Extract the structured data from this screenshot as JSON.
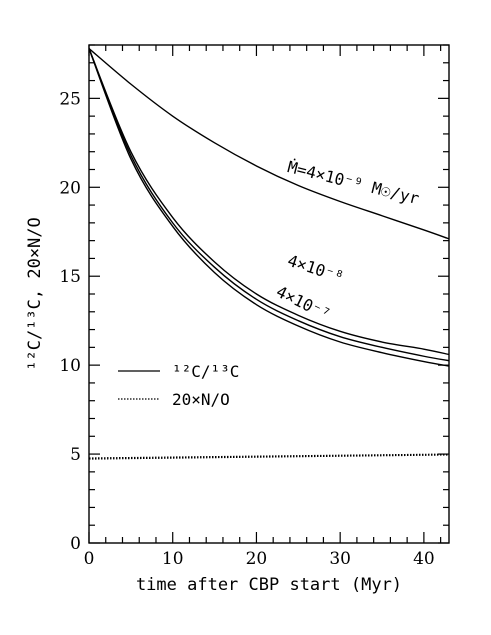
{
  "chart_data": {
    "type": "line",
    "xlabel": "time after CBP start (Myr)",
    "ylabel": "¹²C/¹³C, 20×N/O",
    "xlim": [
      0,
      43
    ],
    "ylim": [
      0,
      28
    ],
    "x_ticks": [
      0,
      10,
      20,
      30,
      40
    ],
    "y_ticks": [
      0,
      5,
      10,
      15,
      20,
      25
    ],
    "x_tick_labels": [
      "0",
      "10",
      "20",
      "30",
      "40"
    ],
    "y_tick_labels": [
      "0",
      "5",
      "10",
      "15",
      "20",
      "25"
    ],
    "grid": false,
    "legend_position": "middle-left",
    "legend": [
      {
        "label": "¹²C/¹³C",
        "style": "solid"
      },
      {
        "label": "20×N/O",
        "style": "dotted"
      }
    ],
    "series": [
      {
        "name": "Ṁ=4×10⁻⁹ M☉/yr",
        "quantity": "12C/13C",
        "style": "solid",
        "x": [
          0,
          5,
          10,
          15,
          20,
          25,
          30,
          35,
          40,
          43
        ],
        "y": [
          27.8,
          25.8,
          24.0,
          22.5,
          21.2,
          20.1,
          19.2,
          18.4,
          17.6,
          17.1
        ]
      },
      {
        "name": "4×10⁻⁸",
        "quantity": "12C/13C",
        "style": "solid",
        "x": [
          0,
          5,
          10,
          15,
          20,
          25,
          30,
          35,
          40,
          43
        ],
        "y": [
          27.8,
          22.0,
          18.3,
          15.8,
          14.0,
          12.8,
          11.9,
          11.3,
          10.9,
          10.6
        ]
      },
      {
        "name": "4×10⁻⁷",
        "quantity": "12C/13C",
        "style": "solid",
        "x": [
          0,
          5,
          10,
          15,
          20,
          25,
          30,
          35,
          40,
          43
        ],
        "y": [
          27.8,
          21.6,
          17.8,
          15.2,
          13.4,
          12.2,
          11.3,
          10.7,
          10.2,
          9.95
        ]
      },
      {
        "name": "",
        "quantity": "12C/13C",
        "style": "solid",
        "x": [
          0,
          5,
          10,
          15,
          20,
          25,
          30,
          35,
          40,
          43
        ],
        "y": [
          27.8,
          21.8,
          18.0,
          15.5,
          13.7,
          12.5,
          11.6,
          11.0,
          10.5,
          10.25
        ]
      },
      {
        "name": "",
        "quantity": "20×N/O",
        "style": "dotted",
        "x": [
          0,
          43
        ],
        "y": [
          4.78,
          5.0
        ]
      },
      {
        "name": "",
        "quantity": "20×N/O",
        "style": "dotted",
        "x": [
          0,
          43
        ],
        "y": [
          4.72,
          4.95
        ]
      }
    ],
    "annotations": [
      {
        "text": "Ṁ=4×10⁻⁹ M☉/yr",
        "x": 30,
        "y": 20.2
      },
      {
        "text": "4×10⁻⁸",
        "x": 26,
        "y": 13.8
      },
      {
        "text": "4×10⁻⁷",
        "x": 25,
        "y": 12.1
      }
    ]
  }
}
